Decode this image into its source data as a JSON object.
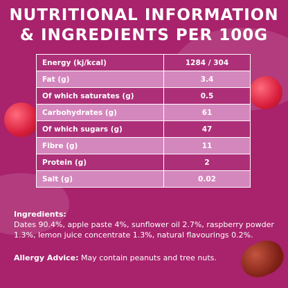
{
  "header": {
    "title_lines": [
      "NUTRITIONAL INFORMATION",
      "& INGREDIENTS PER 100G"
    ]
  },
  "table": {
    "rows": [
      [
        "Energy (kj/kcal)",
        "1284 / 304"
      ],
      [
        "Fat (g)",
        "3.4"
      ],
      [
        "Of which saturates (g)",
        "0.5"
      ],
      [
        "Carbohydrates (g)",
        "61"
      ],
      [
        "Of which sugars (g)",
        "47"
      ],
      [
        "Fibre (g)",
        "11"
      ],
      [
        "Protein (g)",
        "2"
      ],
      [
        "Salt (g)",
        "0.02"
      ]
    ]
  },
  "ingredients": {
    "heading": "Ingredients:",
    "text": "Dates 90.4%, apple paste 4%, sunflower oil 2.7%, raspberry powder 1.3%, lemon juice concentrate 1.3%, natural flavourings 0.2%."
  },
  "allergy": {
    "heading": "Allergy Advice:",
    "text": "May contain peanuts and tree nuts."
  }
}
